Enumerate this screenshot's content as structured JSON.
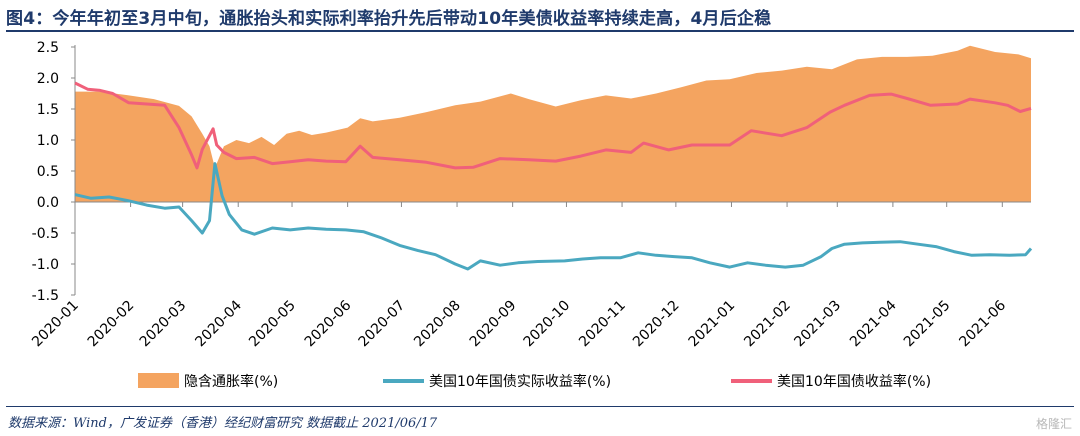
{
  "header": {
    "title": "图4：今年年初至3月中旬，通胀抬头和实际利率抬升先后带动10年美债收益率持续走高，4月后企稳"
  },
  "footer": {
    "source": "数据来源：Wind，广发证券（香港）经纪财富研究   数据截止 2021/06/17"
  },
  "watermark": {
    "text": "格隆汇"
  },
  "chart_data": {
    "type": "line",
    "title": "",
    "xlabel": "",
    "ylabel": "",
    "ylim": [
      -1.5,
      2.5
    ],
    "yticks": [
      -1.5,
      -1.0,
      -0.5,
      0.0,
      0.5,
      1.0,
      1.5,
      2.0,
      2.5
    ],
    "ytick_labels": [
      "-1.5",
      "-1.0",
      "-0.5",
      "0.0",
      "0.5",
      "1.0",
      "1.5",
      "2.0",
      "2.5"
    ],
    "xlim": [
      "2020-01-01",
      "2021-06-17"
    ],
    "xticks": [
      "2020-01",
      "2020-02",
      "2020-03",
      "2020-04",
      "2020-05",
      "2020-06",
      "2020-07",
      "2020-08",
      "2020-09",
      "2020-10",
      "2020-11",
      "2020-12",
      "2021-01",
      "2021-02",
      "2021-03",
      "2021-04",
      "2021-05",
      "2021-06"
    ],
    "grid": false,
    "legend_position": "bottom",
    "series": [
      {
        "name": "隐含通胀率(%)",
        "kind": "area",
        "color": "#f4a460",
        "points": [
          [
            "2020-01-01",
            1.78
          ],
          [
            "2020-01-15",
            1.78
          ],
          [
            "2020-01-31",
            1.72
          ],
          [
            "2020-02-14",
            1.66
          ],
          [
            "2020-02-28",
            1.55
          ],
          [
            "2020-03-06",
            1.38
          ],
          [
            "2020-03-12",
            1.1
          ],
          [
            "2020-03-16",
            0.9
          ],
          [
            "2020-03-19",
            0.55
          ],
          [
            "2020-03-24",
            0.9
          ],
          [
            "2020-03-31",
            1.0
          ],
          [
            "2020-04-07",
            0.95
          ],
          [
            "2020-04-14",
            1.05
          ],
          [
            "2020-04-21",
            0.92
          ],
          [
            "2020-04-28",
            1.1
          ],
          [
            "2020-05-05",
            1.15
          ],
          [
            "2020-05-12",
            1.08
          ],
          [
            "2020-05-20",
            1.12
          ],
          [
            "2020-06-01",
            1.2
          ],
          [
            "2020-06-08",
            1.35
          ],
          [
            "2020-06-15",
            1.3
          ],
          [
            "2020-06-30",
            1.36
          ],
          [
            "2020-07-15",
            1.45
          ],
          [
            "2020-07-31",
            1.56
          ],
          [
            "2020-08-14",
            1.62
          ],
          [
            "2020-08-31",
            1.75
          ],
          [
            "2020-09-10",
            1.66
          ],
          [
            "2020-09-25",
            1.54
          ],
          [
            "2020-10-09",
            1.64
          ],
          [
            "2020-10-23",
            1.72
          ],
          [
            "2020-11-06",
            1.67
          ],
          [
            "2020-11-20",
            1.75
          ],
          [
            "2020-12-04",
            1.85
          ],
          [
            "2020-12-18",
            1.96
          ],
          [
            "2020-12-31",
            1.98
          ],
          [
            "2021-01-15",
            2.08
          ],
          [
            "2021-01-29",
            2.12
          ],
          [
            "2021-02-12",
            2.18
          ],
          [
            "2021-02-26",
            2.14
          ],
          [
            "2021-03-12",
            2.3
          ],
          [
            "2021-03-26",
            2.34
          ],
          [
            "2021-04-09",
            2.34
          ],
          [
            "2021-04-23",
            2.36
          ],
          [
            "2021-05-07",
            2.44
          ],
          [
            "2021-05-14",
            2.52
          ],
          [
            "2021-05-28",
            2.42
          ],
          [
            "2021-06-10",
            2.38
          ],
          [
            "2021-06-17",
            2.32
          ]
        ]
      },
      {
        "name": "美国10年国债实际收益率(%)",
        "kind": "line",
        "color": "#4aa8c0",
        "points": [
          [
            "2020-01-01",
            0.12
          ],
          [
            "2020-01-10",
            0.06
          ],
          [
            "2020-01-20",
            0.08
          ],
          [
            "2020-01-31",
            0.02
          ],
          [
            "2020-02-10",
            -0.05
          ],
          [
            "2020-02-20",
            -0.1
          ],
          [
            "2020-02-28",
            -0.08
          ],
          [
            "2020-03-06",
            -0.3
          ],
          [
            "2020-03-12",
            -0.5
          ],
          [
            "2020-03-16",
            -0.3
          ],
          [
            "2020-03-19",
            0.62
          ],
          [
            "2020-03-23",
            0.1
          ],
          [
            "2020-03-27",
            -0.2
          ],
          [
            "2020-04-03",
            -0.45
          ],
          [
            "2020-04-10",
            -0.52
          ],
          [
            "2020-04-20",
            -0.42
          ],
          [
            "2020-04-30",
            -0.45
          ],
          [
            "2020-05-10",
            -0.42
          ],
          [
            "2020-05-20",
            -0.44
          ],
          [
            "2020-05-31",
            -0.45
          ],
          [
            "2020-06-10",
            -0.48
          ],
          [
            "2020-06-20",
            -0.58
          ],
          [
            "2020-06-30",
            -0.7
          ],
          [
            "2020-07-10",
            -0.78
          ],
          [
            "2020-07-20",
            -0.85
          ],
          [
            "2020-07-31",
            -1.0
          ],
          [
            "2020-08-07",
            -1.08
          ],
          [
            "2020-08-14",
            -0.95
          ],
          [
            "2020-08-25",
            -1.02
          ],
          [
            "2020-09-04",
            -0.98
          ],
          [
            "2020-09-15",
            -0.96
          ],
          [
            "2020-09-30",
            -0.95
          ],
          [
            "2020-10-10",
            -0.92
          ],
          [
            "2020-10-20",
            -0.9
          ],
          [
            "2020-10-31",
            -0.9
          ],
          [
            "2020-11-10",
            -0.82
          ],
          [
            "2020-11-20",
            -0.86
          ],
          [
            "2020-11-30",
            -0.88
          ],
          [
            "2020-12-10",
            -0.9
          ],
          [
            "2020-12-20",
            -0.98
          ],
          [
            "2020-12-31",
            -1.05
          ],
          [
            "2021-01-10",
            -0.98
          ],
          [
            "2021-01-20",
            -1.02
          ],
          [
            "2021-01-31",
            -1.05
          ],
          [
            "2021-02-10",
            -1.02
          ],
          [
            "2021-02-20",
            -0.88
          ],
          [
            "2021-02-26",
            -0.75
          ],
          [
            "2021-03-05",
            -0.68
          ],
          [
            "2021-03-15",
            -0.66
          ],
          [
            "2021-03-25",
            -0.65
          ],
          [
            "2021-04-05",
            -0.64
          ],
          [
            "2021-04-15",
            -0.68
          ],
          [
            "2021-04-25",
            -0.72
          ],
          [
            "2021-05-05",
            -0.8
          ],
          [
            "2021-05-15",
            -0.86
          ],
          [
            "2021-05-25",
            -0.85
          ],
          [
            "2021-06-05",
            -0.86
          ],
          [
            "2021-06-14",
            -0.85
          ],
          [
            "2021-06-17",
            -0.75
          ]
        ]
      },
      {
        "name": "美国10年国债收益率(%)",
        "kind": "line",
        "color": "#f0607a",
        "points": [
          [
            "2020-01-01",
            1.92
          ],
          [
            "2020-01-08",
            1.82
          ],
          [
            "2020-01-15",
            1.8
          ],
          [
            "2020-01-22",
            1.75
          ],
          [
            "2020-01-31",
            1.6
          ],
          [
            "2020-02-10",
            1.58
          ],
          [
            "2020-02-20",
            1.56
          ],
          [
            "2020-02-28",
            1.2
          ],
          [
            "2020-03-06",
            0.76
          ],
          [
            "2020-03-09",
            0.55
          ],
          [
            "2020-03-12",
            0.85
          ],
          [
            "2020-03-18",
            1.18
          ],
          [
            "2020-03-20",
            0.92
          ],
          [
            "2020-03-24",
            0.8
          ],
          [
            "2020-03-31",
            0.7
          ],
          [
            "2020-04-10",
            0.72
          ],
          [
            "2020-04-20",
            0.62
          ],
          [
            "2020-04-30",
            0.65
          ],
          [
            "2020-05-10",
            0.68
          ],
          [
            "2020-05-20",
            0.66
          ],
          [
            "2020-05-31",
            0.65
          ],
          [
            "2020-06-08",
            0.9
          ],
          [
            "2020-06-15",
            0.72
          ],
          [
            "2020-06-30",
            0.68
          ],
          [
            "2020-07-15",
            0.64
          ],
          [
            "2020-07-31",
            0.55
          ],
          [
            "2020-08-10",
            0.56
          ],
          [
            "2020-08-25",
            0.7
          ],
          [
            "2020-09-10",
            0.68
          ],
          [
            "2020-09-25",
            0.66
          ],
          [
            "2020-10-09",
            0.74
          ],
          [
            "2020-10-23",
            0.84
          ],
          [
            "2020-11-06",
            0.8
          ],
          [
            "2020-11-13",
            0.95
          ],
          [
            "2020-11-27",
            0.84
          ],
          [
            "2020-12-10",
            0.92
          ],
          [
            "2020-12-31",
            0.92
          ],
          [
            "2021-01-12",
            1.15
          ],
          [
            "2021-01-29",
            1.07
          ],
          [
            "2021-02-12",
            1.2
          ],
          [
            "2021-02-25",
            1.45
          ],
          [
            "2021-03-05",
            1.56
          ],
          [
            "2021-03-19",
            1.72
          ],
          [
            "2021-03-31",
            1.74
          ],
          [
            "2021-04-09",
            1.67
          ],
          [
            "2021-04-22",
            1.56
          ],
          [
            "2021-05-07",
            1.58
          ],
          [
            "2021-05-14",
            1.66
          ],
          [
            "2021-05-28",
            1.6
          ],
          [
            "2021-06-04",
            1.56
          ],
          [
            "2021-06-11",
            1.46
          ],
          [
            "2021-06-17",
            1.51
          ]
        ]
      }
    ]
  }
}
